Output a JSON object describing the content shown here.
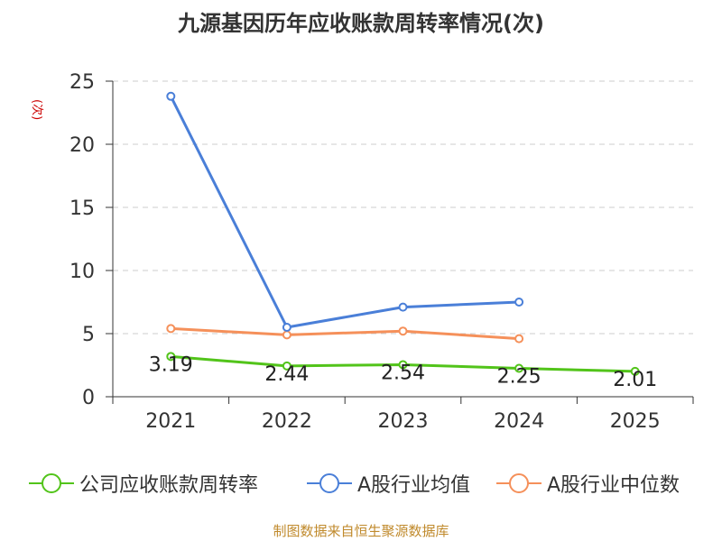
{
  "chart_data": {
    "type": "line",
    "title": "九源基因历年应收账款周转率情况(次)",
    "ylabel": "(次)",
    "xlabel": "",
    "categories": [
      "2021",
      "2022",
      "2023",
      "2024",
      "2025"
    ],
    "ylim": [
      0,
      25
    ],
    "yticks": [
      0,
      5,
      10,
      15,
      20,
      25
    ],
    "grid": true,
    "legend_position": "bottom",
    "series": [
      {
        "name": "公司应收账款周转率",
        "color": "#52c41a",
        "values": [
          3.19,
          2.44,
          2.54,
          2.25,
          2.01
        ],
        "labels": [
          "3.19",
          "2.44",
          "2.54",
          "2.25",
          "2.01"
        ]
      },
      {
        "name": "A股行业均值",
        "color": "#4a7fd8",
        "values": [
          23.8,
          5.5,
          7.1,
          7.5,
          null
        ]
      },
      {
        "name": "A股行业中位数",
        "color": "#f5905a",
        "values": [
          5.4,
          4.9,
          5.2,
          4.6,
          null
        ]
      }
    ],
    "source": "制图数据来自恒生聚源数据库"
  }
}
